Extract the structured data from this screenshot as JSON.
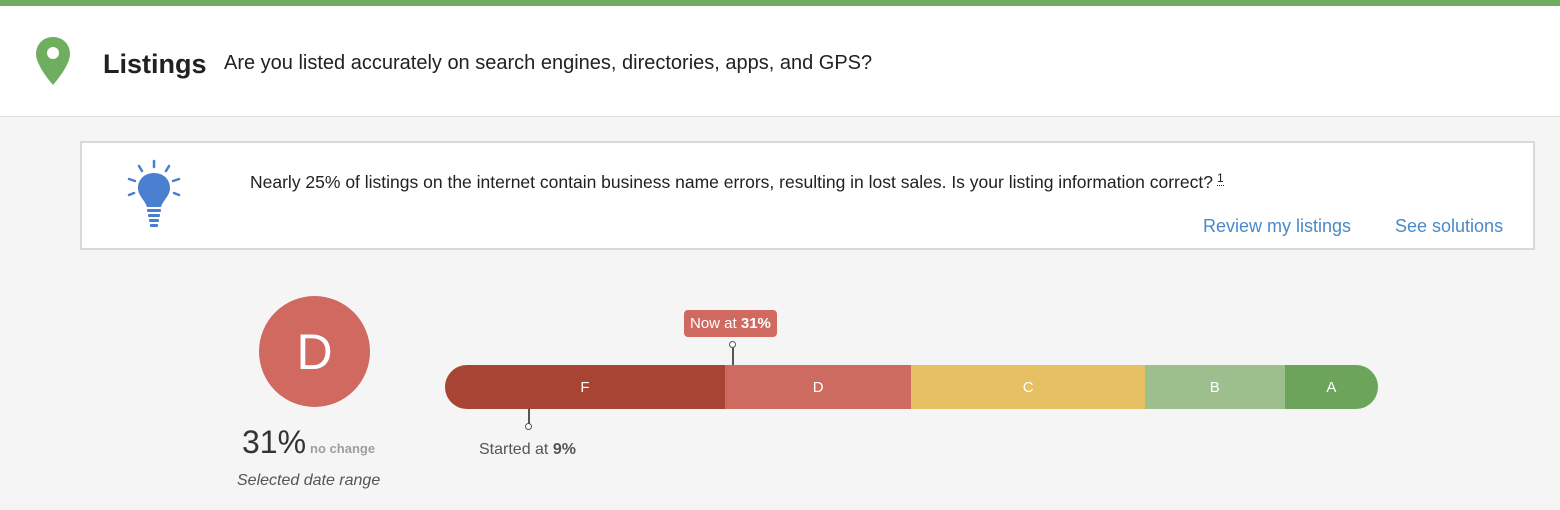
{
  "colors": {
    "accent_bar": "#6fae5f",
    "pin": "#6fae5f",
    "bulb": "#4a7fcf",
    "link": "#4a89c9",
    "grade_circle": "#d0695f"
  },
  "header": {
    "icon": "map-pin-icon",
    "title": "Listings",
    "subtitle": "Are you listed accurately on search engines, directories, apps, and GPS?"
  },
  "tip": {
    "icon": "lightbulb-icon",
    "text": "Nearly 25% of listings on the internet contain business name errors, resulting in lost sales. Is your listing information correct?",
    "footnote": "1",
    "links": {
      "review": "Review my listings",
      "solutions": "See solutions"
    }
  },
  "grade": {
    "letter": "D",
    "score": "31%",
    "change": "no change",
    "range_label": "Selected date range"
  },
  "scale": {
    "segments": [
      {
        "label": "F",
        "color": "#a84434",
        "from": 0,
        "to": 30
      },
      {
        "label": "D",
        "color": "#ce6b60",
        "from": 30,
        "to": 50
      },
      {
        "label": "C",
        "color": "#e6c062",
        "from": 50,
        "to": 75
      },
      {
        "label": "B",
        "color": "#9dbf8e",
        "from": 75,
        "to": 90
      },
      {
        "label": "A",
        "color": "#6da45b",
        "from": 90,
        "to": 100
      }
    ],
    "now": {
      "prefix": "Now at",
      "value": "31%"
    },
    "start": {
      "prefix": "Started at",
      "value": "9%"
    }
  }
}
